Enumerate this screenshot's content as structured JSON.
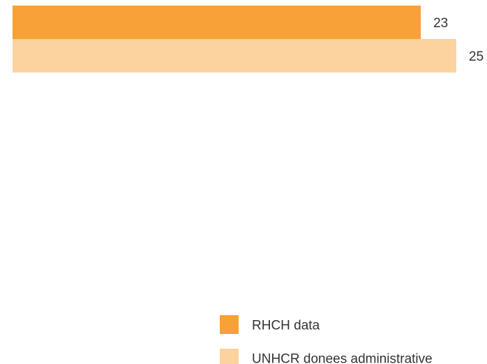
{
  "chart_data": {
    "type": "bar",
    "orientation": "horizontal",
    "title": "",
    "xlabel": "",
    "ylabel": "",
    "grid": false,
    "xlim": [
      0,
      25
    ],
    "legend_position": "bottom-right",
    "series": [
      {
        "name": "RHCH data",
        "values": [
          23
        ],
        "color": "#F7A136"
      },
      {
        "name": "UNHCR donees administrative",
        "values": [
          25
        ],
        "color": "#FCD29F"
      }
    ]
  }
}
